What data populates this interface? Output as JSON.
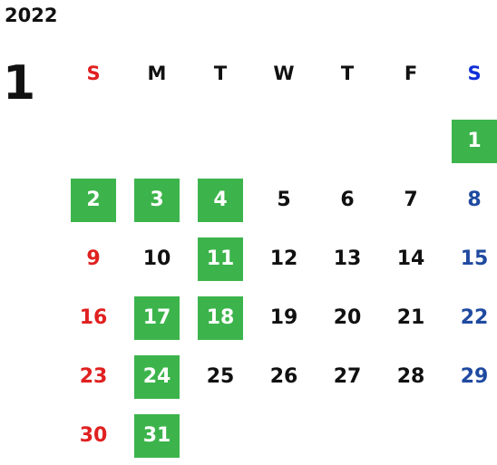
{
  "year": "2022",
  "month": "1",
  "weekdays": [
    "S",
    "M",
    "T",
    "W",
    "T",
    "F",
    "S"
  ],
  "colors": {
    "sunday": "#e02020",
    "saturday": "#1f4aa0",
    "highlight": "#3cb44b"
  },
  "start_offset": 6,
  "days": [
    {
      "n": "1",
      "hl": true
    },
    {
      "n": "2",
      "hl": true
    },
    {
      "n": "3",
      "hl": true
    },
    {
      "n": "4",
      "hl": true
    },
    {
      "n": "5",
      "hl": false
    },
    {
      "n": "6",
      "hl": false
    },
    {
      "n": "7",
      "hl": false
    },
    {
      "n": "8",
      "hl": false
    },
    {
      "n": "9",
      "hl": false
    },
    {
      "n": "10",
      "hl": false
    },
    {
      "n": "11",
      "hl": true
    },
    {
      "n": "12",
      "hl": false
    },
    {
      "n": "13",
      "hl": false
    },
    {
      "n": "14",
      "hl": false
    },
    {
      "n": "15",
      "hl": false
    },
    {
      "n": "16",
      "hl": false
    },
    {
      "n": "17",
      "hl": true
    },
    {
      "n": "18",
      "hl": true
    },
    {
      "n": "19",
      "hl": false
    },
    {
      "n": "20",
      "hl": false
    },
    {
      "n": "21",
      "hl": false
    },
    {
      "n": "22",
      "hl": false
    },
    {
      "n": "23",
      "hl": false
    },
    {
      "n": "24",
      "hl": true
    },
    {
      "n": "25",
      "hl": false
    },
    {
      "n": "26",
      "hl": false
    },
    {
      "n": "27",
      "hl": false
    },
    {
      "n": "28",
      "hl": false
    },
    {
      "n": "29",
      "hl": false
    },
    {
      "n": "30",
      "hl": false
    },
    {
      "n": "31",
      "hl": true
    }
  ]
}
